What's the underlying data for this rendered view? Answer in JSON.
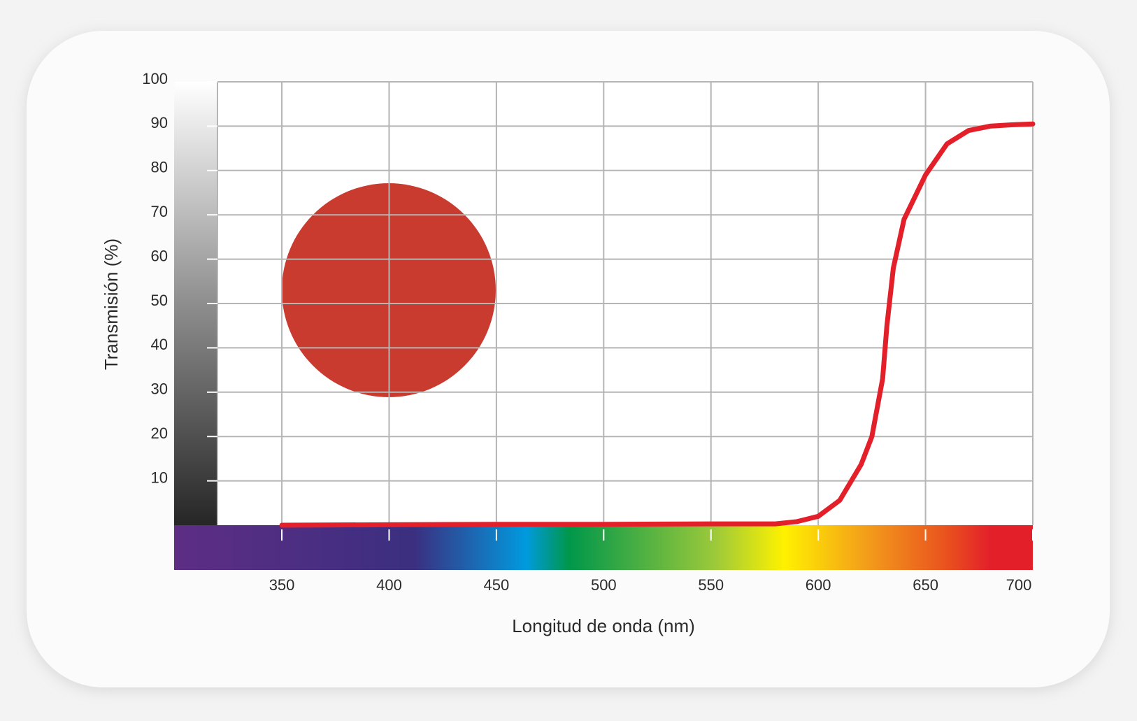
{
  "chart_data": {
    "type": "line",
    "x_label": "Longitud de onda (nm)",
    "y_label": "Transmisión (%)",
    "x": [
      350,
      400,
      450,
      500,
      550,
      580,
      590,
      600,
      610,
      620,
      625,
      630,
      632,
      635,
      640,
      650,
      660,
      670,
      680,
      690,
      700
    ],
    "series": [
      {
        "color": "#e3202a",
        "values": [
          0,
          0.1,
          0.2,
          0.2,
          0.3,
          0.3,
          0.8,
          2,
          5.6,
          13.7,
          20,
          33,
          45,
          58,
          69,
          79,
          86,
          89,
          90,
          90.3,
          90.5
        ]
      }
    ],
    "xlim": [
      320,
      700
    ],
    "xticks": [
      350,
      400,
      450,
      500,
      550,
      600,
      650,
      700
    ],
    "ylim": [
      0,
      100
    ],
    "yticks": [
      10,
      20,
      30,
      40,
      50,
      60,
      70,
      80,
      90,
      100
    ],
    "grid": true
  }
}
